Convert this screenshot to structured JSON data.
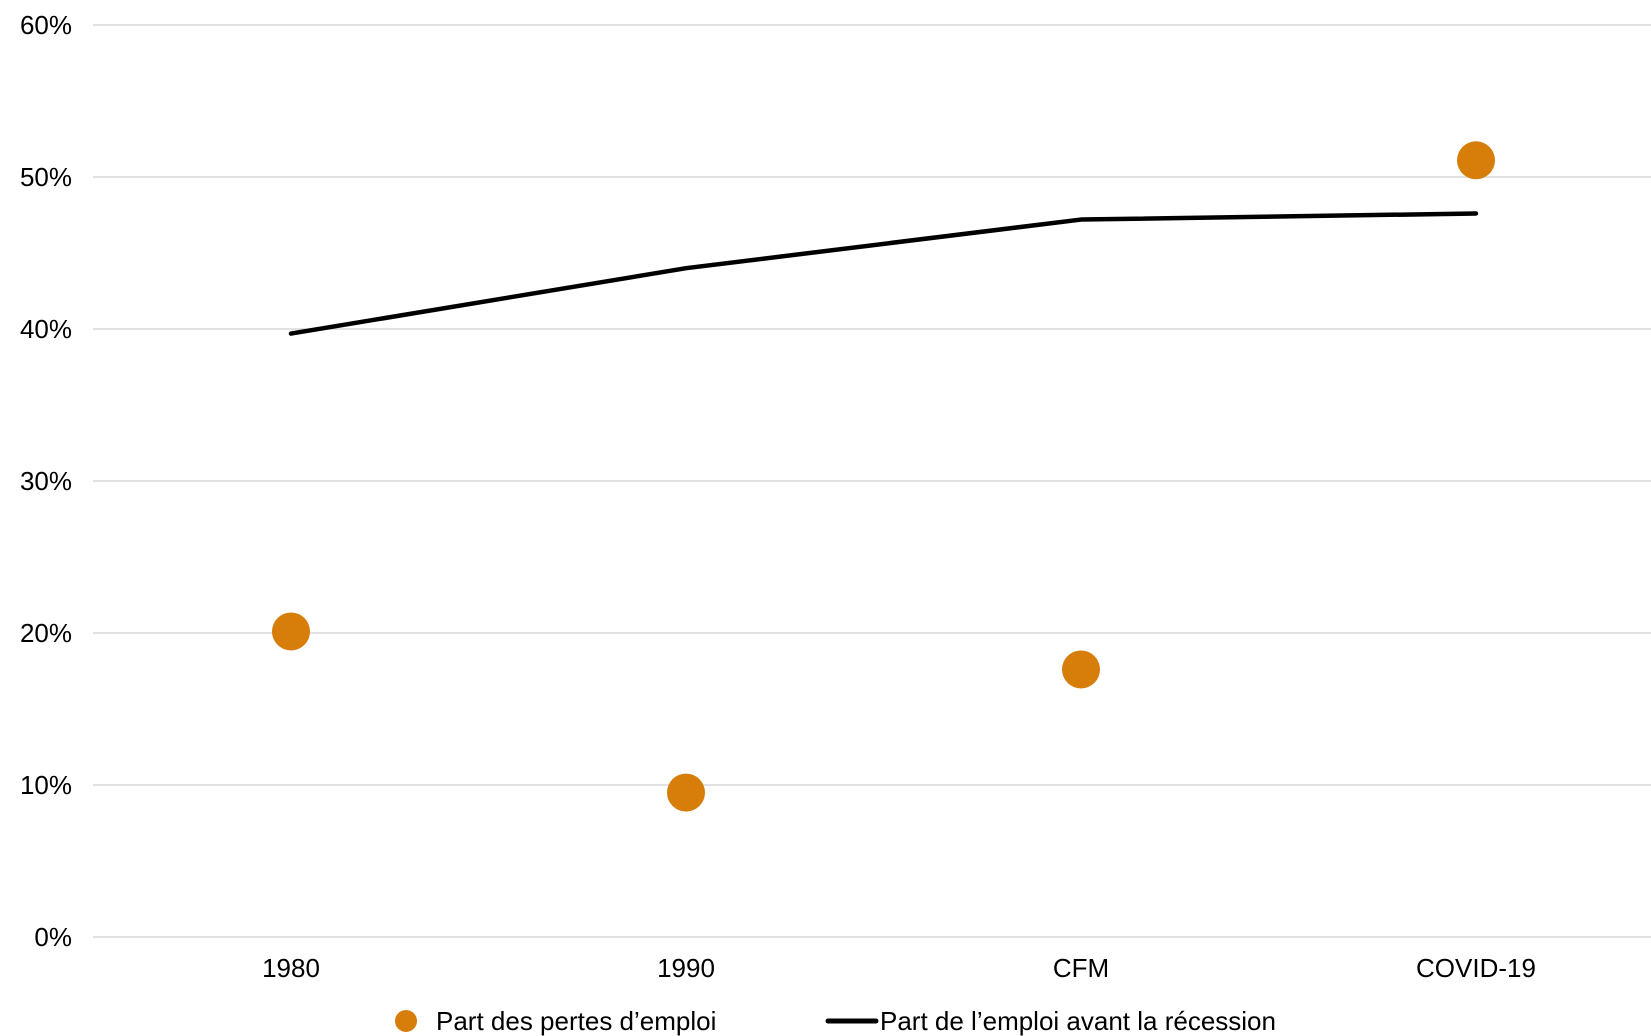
{
  "chart_data": {
    "type": "line",
    "categories": [
      "1980",
      "1990",
      "CFM",
      "COVID-19"
    ],
    "series": [
      {
        "name": "Part des pertes d’emploi",
        "kind": "scatter",
        "color": "#d67d0a",
        "values": [
          20.1,
          9.5,
          17.6,
          51.1
        ]
      },
      {
        "name": "Part de l’emploi avant la récession",
        "kind": "line",
        "color": "#000000",
        "values": [
          39.7,
          44.0,
          47.2,
          47.6
        ]
      }
    ],
    "ylim": [
      0,
      60
    ],
    "yticks": [
      "0%",
      "10%",
      "20%",
      "30%",
      "40%",
      "50%",
      "60%"
    ],
    "y_unit": "%",
    "grid": true,
    "gridline_color": "#d9d9d9",
    "legend_position": "bottom"
  }
}
